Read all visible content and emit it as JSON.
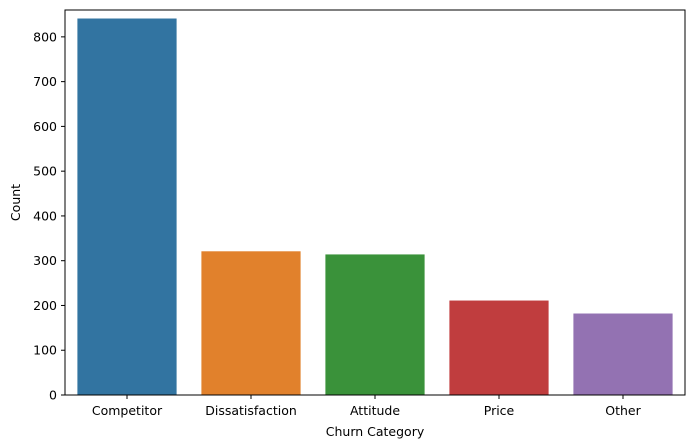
{
  "chart_data": {
    "type": "bar",
    "title": "",
    "xlabel": "Churn Category",
    "ylabel": "Count",
    "categories": [
      "Competitor",
      "Dissatisfaction",
      "Attitude",
      "Price",
      "Other"
    ],
    "values": [
      841,
      321,
      314,
      211,
      182
    ],
    "colors": [
      "#3274a1",
      "#e1812c",
      "#3a923a",
      "#c03d3e",
      "#9372b2"
    ],
    "ylim": [
      0,
      860
    ],
    "yticks": [
      0,
      100,
      200,
      300,
      400,
      500,
      600,
      700,
      800
    ],
    "grid": false,
    "legend": "none"
  }
}
